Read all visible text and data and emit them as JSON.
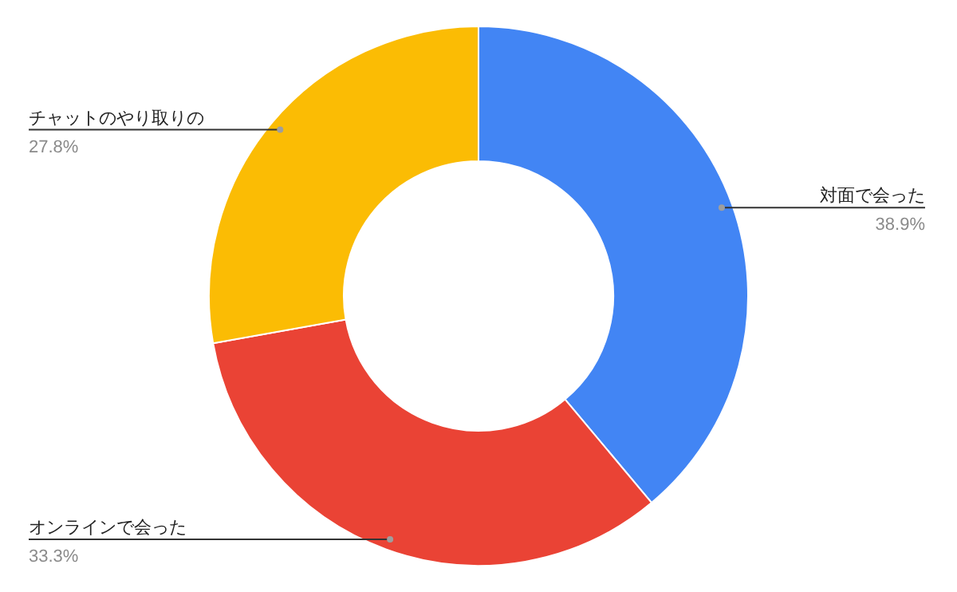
{
  "chart_data": {
    "type": "donut",
    "categories": [
      "対面で会った",
      "オンラインで会った",
      "チャットのやり取りの"
    ],
    "values": [
      38.9,
      33.3,
      27.8
    ],
    "value_labels": [
      "38.9%",
      "33.3%",
      "27.8%"
    ],
    "colors": [
      "#4285f4",
      "#ea4335",
      "#fbbc04"
    ],
    "legend": false
  }
}
